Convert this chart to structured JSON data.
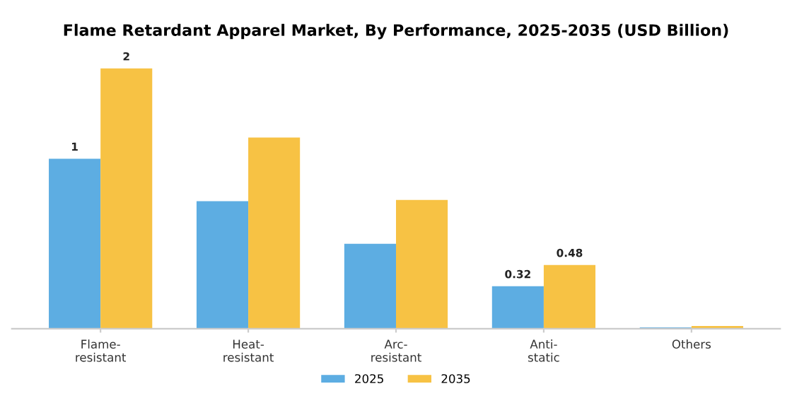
{
  "chart_data": {
    "type": "bar",
    "title": "Flame Retardant Apparel Market, By Performance, 2025-2035 (USD Billion)",
    "categories": [
      "Flame-\nresistant",
      "Heat-\nresistant",
      "Arc-\nresistant",
      "Anti-\nstatic",
      "Others"
    ],
    "series": [
      {
        "name": "2025",
        "color": "#5dade2",
        "values": [
          1.28,
          0.96,
          0.64,
          0.32,
          0.01
        ],
        "value_labels": [
          "1",
          null,
          null,
          "0.32",
          null
        ]
      },
      {
        "name": "2035",
        "color": "#f7c244",
        "values": [
          1.96,
          1.44,
          0.97,
          0.48,
          0.02
        ],
        "value_labels": [
          "2",
          null,
          null,
          "0.48",
          null
        ]
      }
    ],
    "legend": "bottom",
    "grid": false
  }
}
